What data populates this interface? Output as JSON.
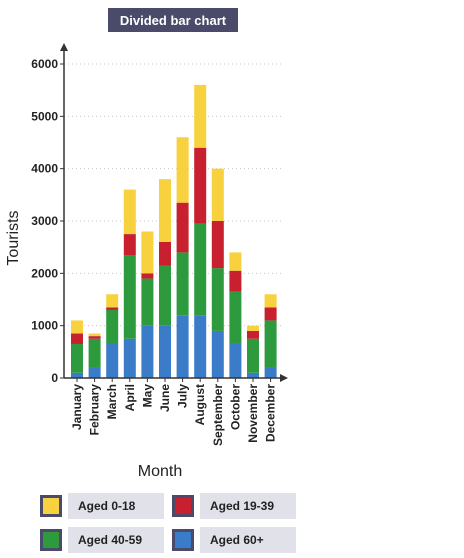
{
  "chart_data": {
    "type": "bar",
    "stacked": true,
    "title": "Divided bar chart",
    "xlabel": "Month",
    "ylabel": "Tourists",
    "ylim": [
      0,
      6000
    ],
    "yticks": [
      0,
      1000,
      2000,
      3000,
      4000,
      5000,
      6000
    ],
    "grid": "horizontal dotted",
    "legend_placement": "bottom",
    "categories": [
      "January",
      "February",
      "March",
      "April",
      "May",
      "June",
      "July",
      "August",
      "September",
      "October",
      "November",
      "December"
    ],
    "series": [
      {
        "name": "Aged 60+",
        "color": "#3a7cc8",
        "values": [
          100,
          200,
          650,
          750,
          1000,
          1000,
          1200,
          1200,
          900,
          650,
          100,
          200
        ]
      },
      {
        "name": "Aged 40-59",
        "color": "#2e9a3e",
        "values": [
          550,
          550,
          650,
          1600,
          900,
          1150,
          1200,
          1750,
          1200,
          1000,
          650,
          900
        ]
      },
      {
        "name": "Aged 19-39",
        "color": "#c8202e",
        "values": [
          200,
          50,
          50,
          400,
          100,
          450,
          950,
          1450,
          900,
          400,
          150,
          250
        ]
      },
      {
        "name": "Aged 0-18",
        "color": "#f7d23e",
        "values": [
          250,
          50,
          250,
          850,
          800,
          1200,
          1250,
          1200,
          1000,
          350,
          100,
          250
        ]
      }
    ]
  },
  "legend": {
    "items": [
      {
        "label": "Aged 0-18",
        "color": "#f7d23e"
      },
      {
        "label": "Aged 19-39",
        "color": "#c8202e"
      },
      {
        "label": "Aged 40-59",
        "color": "#2e9a3e"
      },
      {
        "label": "Aged 60+",
        "color": "#3a7cc8"
      }
    ]
  }
}
